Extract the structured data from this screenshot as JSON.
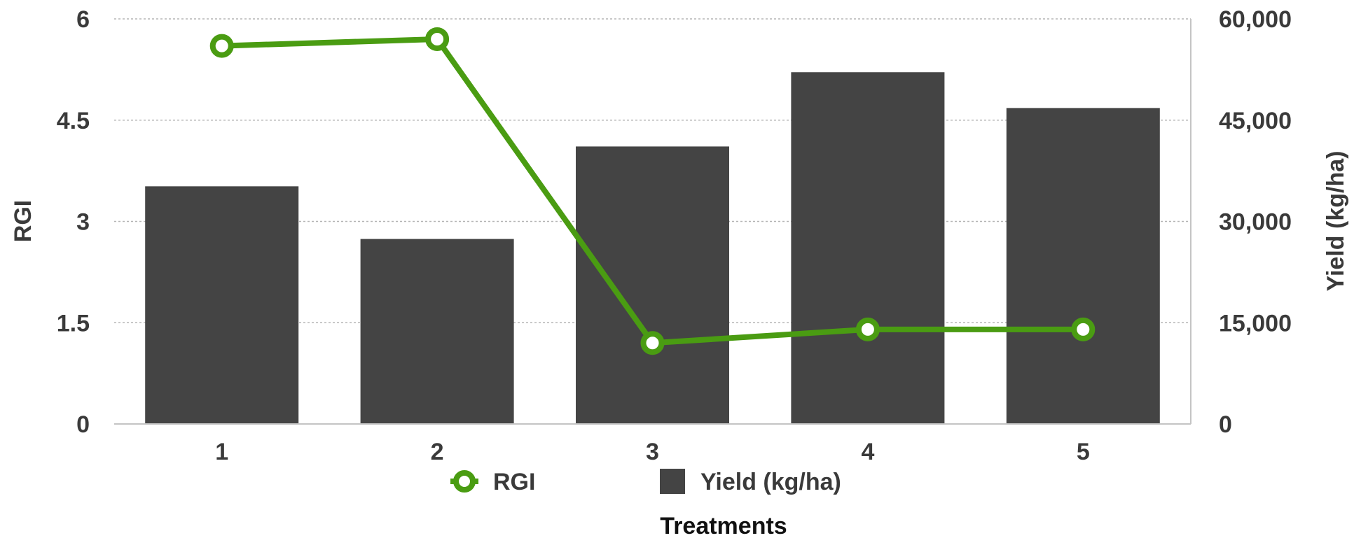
{
  "chart_data": {
    "type": "bar",
    "categories": [
      "1",
      "2",
      "3",
      "4",
      "5"
    ],
    "series": [
      {
        "name": "Yield (kg/ha)",
        "type": "bar",
        "axis": "right",
        "values": [
          35200,
          27400,
          41100,
          52100,
          46800
        ],
        "color": "#444444"
      },
      {
        "name": "RGI",
        "type": "line",
        "axis": "left",
        "values": [
          5.6,
          5.7,
          1.2,
          1.4,
          1.4
        ],
        "color": "#4a9c12"
      }
    ],
    "xlabel": "Treatments",
    "ylabel_left": "RGI",
    "ylabel_right": "Yield (kg/ha)",
    "ylim_left": [
      0,
      6
    ],
    "ylim_right": [
      0,
      60000
    ],
    "left_ticks": [
      "0",
      "1.5",
      "3",
      "4.5",
      "6"
    ],
    "right_ticks": [
      "0",
      "15,000",
      "30,000",
      "45,000",
      "60,000"
    ],
    "grid": true,
    "legend": {
      "placement": "bottom",
      "entries": [
        "RGI",
        "Yield (kg/ha)"
      ]
    }
  }
}
